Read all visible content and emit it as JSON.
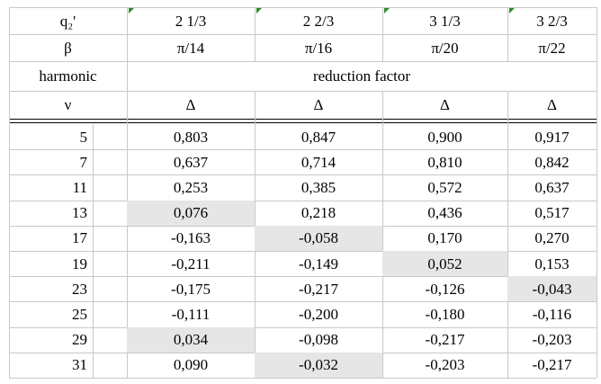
{
  "header": {
    "q_label": "q₂'",
    "q_values": [
      "2 1/3",
      "2 2/3",
      "3 1/3",
      "3 2/3"
    ],
    "beta_label": "β",
    "beta_values": [
      "π/14",
      "π/16",
      "π/20",
      "π/22"
    ],
    "harmonic_label": "harmonic",
    "reduction_label": "reduction factor",
    "nu_label": "ν",
    "delta_values": [
      "Δ",
      "Δ",
      "Δ",
      "Δ"
    ]
  },
  "rows": [
    {
      "nu": "5",
      "values": [
        "0,803",
        "0,847",
        "0,900",
        "0,917"
      ]
    },
    {
      "nu": "7",
      "values": [
        "0,637",
        "0,714",
        "0,810",
        "0,842"
      ]
    },
    {
      "nu": "11",
      "values": [
        "0,253",
        "0,385",
        "0,572",
        "0,637"
      ]
    },
    {
      "nu": "13",
      "values": [
        "0,076",
        "0,218",
        "0,436",
        "0,517"
      ]
    },
    {
      "nu": "17",
      "values": [
        "-0,163",
        "-0,058",
        "0,170",
        "0,270"
      ]
    },
    {
      "nu": "19",
      "values": [
        "-0,211",
        "-0,149",
        "0,052",
        "0,153"
      ]
    },
    {
      "nu": "23",
      "values": [
        "-0,175",
        "-0,217",
        "-0,126",
        "-0,043"
      ]
    },
    {
      "nu": "25",
      "values": [
        "-0,111",
        "-0,200",
        "-0,180",
        "-0,116"
      ]
    },
    {
      "nu": "29",
      "values": [
        "0,034",
        "-0,098",
        "-0,217",
        "-0,203"
      ]
    },
    {
      "nu": "31",
      "values": [
        "0,090",
        "-0,032",
        "-0,203",
        "-0,217"
      ]
    }
  ],
  "highlighted_cells": [
    {
      "row": 3,
      "col": 0
    },
    {
      "row": 4,
      "col": 1
    },
    {
      "row": 5,
      "col": 2
    },
    {
      "row": 6,
      "col": 3
    },
    {
      "row": 8,
      "col": 0
    },
    {
      "row": 9,
      "col": 1
    }
  ],
  "colors": {
    "highlight": "#e6e6e6",
    "grid": "#c8c8c8",
    "rule": "#000000",
    "comment_marker": "#2e8b2e"
  }
}
